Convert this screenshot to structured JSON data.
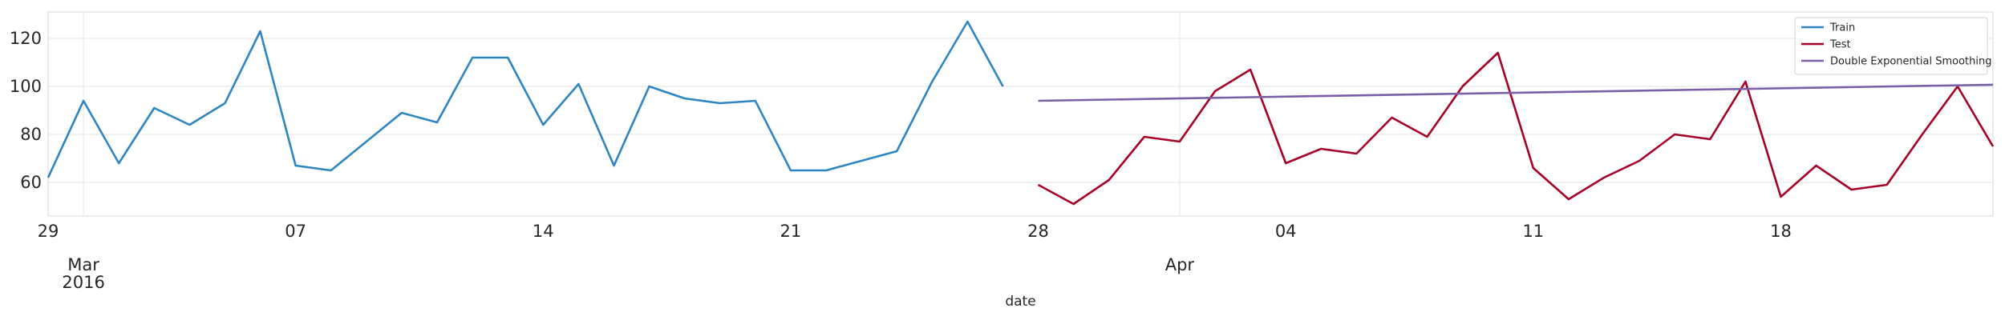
{
  "chart_data": {
    "type": "line",
    "xlabel": "date",
    "ylabel": "",
    "ylim": [
      46,
      131
    ],
    "xlim": [
      "2016-02-29",
      "2016-04-24"
    ],
    "grid": true,
    "legend_position": "top-right",
    "y_ticks": [
      60,
      80,
      100,
      120
    ],
    "x_ticks": [
      {
        "date": "2016-02-29",
        "label": "29"
      },
      {
        "date": "2016-03-07",
        "label": "07"
      },
      {
        "date": "2016-03-14",
        "label": "14"
      },
      {
        "date": "2016-03-21",
        "label": "21"
      },
      {
        "date": "2016-03-28",
        "label": "28"
      },
      {
        "date": "2016-04-04",
        "label": "04"
      },
      {
        "date": "2016-04-11",
        "label": "11"
      },
      {
        "date": "2016-04-18",
        "label": "18"
      }
    ],
    "month_ticks": [
      {
        "date": "2016-03-01",
        "label": "Mar",
        "sublabel": "2016"
      },
      {
        "date": "2016-04-01",
        "label": "Apr",
        "sublabel": ""
      }
    ],
    "series": [
      {
        "name": "Train",
        "color": "#2e86c1",
        "x": [
          "2016-02-29",
          "2016-03-01",
          "2016-03-02",
          "2016-03-03",
          "2016-03-04",
          "2016-03-05",
          "2016-03-06",
          "2016-03-07",
          "2016-03-08",
          "2016-03-09",
          "2016-03-10",
          "2016-03-11",
          "2016-03-12",
          "2016-03-13",
          "2016-03-14",
          "2016-03-15",
          "2016-03-16",
          "2016-03-17",
          "2016-03-18",
          "2016-03-19",
          "2016-03-20",
          "2016-03-21",
          "2016-03-22",
          "2016-03-23",
          "2016-03-24",
          "2016-03-25",
          "2016-03-26",
          "2016-03-27"
        ],
        "values": [
          62,
          94,
          68,
          91,
          84,
          93,
          123,
          67,
          65,
          77,
          89,
          85,
          112,
          112,
          84,
          101,
          67,
          100,
          95,
          93,
          94,
          65,
          65,
          69,
          73,
          102,
          127,
          100
        ]
      },
      {
        "name": "Test",
        "color": "#a50026",
        "x": [
          "2016-03-28",
          "2016-03-29",
          "2016-03-30",
          "2016-03-31",
          "2016-04-01",
          "2016-04-02",
          "2016-04-03",
          "2016-04-04",
          "2016-04-05",
          "2016-04-06",
          "2016-04-07",
          "2016-04-08",
          "2016-04-09",
          "2016-04-10",
          "2016-04-11",
          "2016-04-12",
          "2016-04-13",
          "2016-04-14",
          "2016-04-15",
          "2016-04-16",
          "2016-04-17",
          "2016-04-18",
          "2016-04-19",
          "2016-04-20",
          "2016-04-21",
          "2016-04-22",
          "2016-04-23",
          "2016-04-24"
        ],
        "values": [
          59,
          51,
          61,
          79,
          77,
          98,
          107,
          68,
          74,
          72,
          87,
          79,
          100,
          114,
          66,
          53,
          62,
          69,
          80,
          78,
          102,
          54,
          67,
          57,
          59,
          80,
          100,
          75
        ]
      },
      {
        "name": "Double Exponential Smoothing",
        "color": "#7b5ea7",
        "x": [
          "2016-03-28",
          "2016-04-24"
        ],
        "values": [
          94,
          100.7
        ]
      }
    ]
  }
}
